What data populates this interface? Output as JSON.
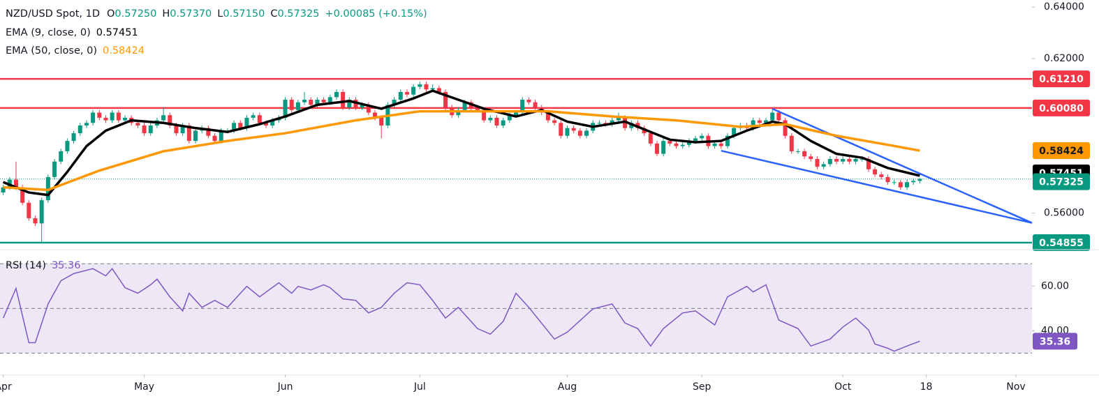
{
  "chart_data": [
    {
      "type": "candlestick",
      "symbol": "NZD/USD Spot, 1D",
      "ohlc_keys": [
        "O",
        "H",
        "L",
        "C"
      ],
      "ohlc_labels": [
        "0.57250",
        "0.57370",
        "0.57150",
        "0.57325"
      ],
      "change_label": "+0.00085 (+0.15%)",
      "up_color": "#089981",
      "down_color": "#f23645",
      "x": [
        0,
        1,
        2,
        3,
        4,
        5,
        6,
        7,
        8,
        9,
        10,
        11,
        12,
        13,
        14,
        15,
        16,
        17,
        18,
        19,
        20,
        21,
        22,
        23,
        24,
        25,
        26,
        27,
        28,
        29,
        30,
        31,
        32,
        33,
        34,
        35,
        36,
        37,
        38,
        39,
        40,
        41,
        42,
        43,
        44,
        45,
        46,
        47,
        48,
        49,
        50,
        51,
        52,
        53,
        54,
        55,
        56,
        57,
        58,
        59,
        60,
        61,
        62,
        63,
        64,
        65,
        66,
        67,
        68,
        69,
        70,
        71,
        72,
        73,
        74,
        75,
        76,
        77,
        78,
        79,
        80,
        81,
        82,
        83,
        84,
        85,
        86,
        87,
        88,
        89,
        90,
        91,
        92,
        93,
        94,
        95,
        96,
        97,
        98,
        99,
        100,
        101,
        102,
        103,
        104,
        105,
        106,
        107,
        108,
        109,
        110,
        111,
        112,
        113,
        114,
        115,
        116,
        117,
        118,
        119,
        120,
        121,
        122,
        123,
        124,
        125,
        126,
        127,
        128,
        129,
        130,
        131,
        132,
        133,
        134,
        135,
        136,
        137,
        138,
        139,
        140,
        141,
        142,
        143
      ],
      "open": [
        0.568,
        0.57,
        0.573,
        0.57,
        0.564,
        0.558,
        0.556,
        0.565,
        0.574,
        0.58,
        0.584,
        0.588,
        0.591,
        0.594,
        0.595,
        0.599,
        0.597,
        0.596,
        0.599,
        0.596,
        0.597,
        0.595,
        0.594,
        0.591,
        0.594,
        0.596,
        0.598,
        0.594,
        0.591,
        0.594,
        0.588,
        0.592,
        0.593,
        0.59,
        0.588,
        0.592,
        0.592,
        0.595,
        0.593,
        0.597,
        0.598,
        0.595,
        0.594,
        0.596,
        0.597,
        0.604,
        0.6,
        0.603,
        0.604,
        0.602,
        0.604,
        0.603,
        0.605,
        0.607,
        0.601,
        0.604,
        0.601,
        0.602,
        0.599,
        0.597,
        0.594,
        0.602,
        0.604,
        0.607,
        0.606,
        0.609,
        0.61,
        0.608,
        0.6085,
        0.607,
        0.601,
        0.598,
        0.6,
        0.603,
        0.601,
        0.6,
        0.596,
        0.597,
        0.594,
        0.596,
        0.598,
        0.599,
        0.604,
        0.603,
        0.601,
        0.599,
        0.596,
        0.595,
        0.59,
        0.593,
        0.592,
        0.59,
        0.592,
        0.595,
        0.595,
        0.5945,
        0.596,
        0.597,
        0.593,
        0.595,
        0.593,
        0.591,
        0.587,
        0.583,
        0.588,
        0.587,
        0.586,
        0.5865,
        0.588,
        0.589,
        0.59,
        0.586,
        0.587,
        0.586,
        0.59,
        0.593,
        0.594,
        0.593,
        0.596,
        0.595,
        0.596,
        0.599,
        0.596,
        0.59,
        0.584,
        0.584,
        0.582,
        0.581,
        0.578,
        0.579,
        0.581,
        0.58,
        0.581,
        0.58,
        0.581,
        0.581,
        0.577,
        0.575,
        0.574,
        0.572,
        0.572,
        0.57,
        0.572,
        0.5725
      ],
      "high": [
        0.571,
        0.574,
        0.58,
        0.571,
        0.565,
        0.559,
        0.566,
        0.575,
        0.581,
        0.585,
        0.589,
        0.592,
        0.595,
        0.596,
        0.6,
        0.6,
        0.598,
        0.6,
        0.6,
        0.598,
        0.598,
        0.596,
        0.595,
        0.595,
        0.597,
        0.601,
        0.599,
        0.595,
        0.595,
        0.595,
        0.593,
        0.594,
        0.594,
        0.591,
        0.593,
        0.593,
        0.596,
        0.596,
        0.598,
        0.599,
        0.599,
        0.596,
        0.597,
        0.598,
        0.605,
        0.605,
        0.604,
        0.607,
        0.605,
        0.605,
        0.605,
        0.606,
        0.608,
        0.608,
        0.605,
        0.605,
        0.603,
        0.603,
        0.6,
        0.598,
        0.603,
        0.605,
        0.608,
        0.608,
        0.61,
        0.611,
        0.611,
        0.61,
        0.6095,
        0.608,
        0.602,
        0.601,
        0.604,
        0.604,
        0.602,
        0.601,
        0.598,
        0.598,
        0.597,
        0.599,
        0.6,
        0.605,
        0.605,
        0.604,
        0.602,
        0.6,
        0.597,
        0.596,
        0.594,
        0.594,
        0.593,
        0.593,
        0.596,
        0.596,
        0.596,
        0.597,
        0.599,
        0.598,
        0.596,
        0.596,
        0.594,
        0.592,
        0.588,
        0.589,
        0.589,
        0.588,
        0.5875,
        0.589,
        0.59,
        0.591,
        0.591,
        0.588,
        0.588,
        0.591,
        0.594,
        0.595,
        0.595,
        0.597,
        0.597,
        0.597,
        0.6005,
        0.6,
        0.597,
        0.591,
        0.585,
        0.585,
        0.583,
        0.582,
        0.58,
        0.582,
        0.582,
        0.582,
        0.582,
        0.582,
        0.582,
        0.582,
        0.578,
        0.576,
        0.575,
        0.573,
        0.573,
        0.573,
        0.5735,
        0.5737
      ],
      "low": [
        0.567,
        0.569,
        0.569,
        0.563,
        0.557,
        0.555,
        0.5485,
        0.564,
        0.573,
        0.579,
        0.583,
        0.587,
        0.59,
        0.593,
        0.594,
        0.596,
        0.595,
        0.595,
        0.595,
        0.595,
        0.594,
        0.593,
        0.59,
        0.59,
        0.593,
        0.595,
        0.593,
        0.59,
        0.59,
        0.587,
        0.587,
        0.591,
        0.589,
        0.587,
        0.587,
        0.591,
        0.591,
        0.592,
        0.592,
        0.596,
        0.594,
        0.593,
        0.593,
        0.595,
        0.596,
        0.599,
        0.599,
        0.602,
        0.601,
        0.601,
        0.602,
        0.602,
        0.604,
        0.6,
        0.6,
        0.6,
        0.6,
        0.598,
        0.596,
        0.589,
        0.593,
        0.601,
        0.603,
        0.605,
        0.605,
        0.608,
        0.607,
        0.607,
        0.606,
        0.6,
        0.597,
        0.597,
        0.599,
        0.6,
        0.599,
        0.595,
        0.595,
        0.593,
        0.593,
        0.595,
        0.597,
        0.598,
        0.602,
        0.6,
        0.598,
        0.595,
        0.594,
        0.589,
        0.589,
        0.591,
        0.589,
        0.589,
        0.591,
        0.594,
        0.5935,
        0.5935,
        0.595,
        0.592,
        0.592,
        0.592,
        0.59,
        0.586,
        0.582,
        0.582,
        0.586,
        0.585,
        0.585,
        0.5855,
        0.587,
        0.588,
        0.585,
        0.585,
        0.585,
        0.585,
        0.589,
        0.592,
        0.592,
        0.592,
        0.594,
        0.594,
        0.595,
        0.595,
        0.589,
        0.583,
        0.583,
        0.581,
        0.58,
        0.577,
        0.577,
        0.578,
        0.579,
        0.579,
        0.579,
        0.579,
        0.58,
        0.576,
        0.574,
        0.573,
        0.571,
        0.571,
        0.569,
        0.569,
        0.571,
        0.5715
      ],
      "close": [
        0.57,
        0.573,
        0.57,
        0.564,
        0.558,
        0.556,
        0.565,
        0.574,
        0.58,
        0.584,
        0.588,
        0.591,
        0.594,
        0.595,
        0.599,
        0.597,
        0.596,
        0.599,
        0.596,
        0.597,
        0.595,
        0.594,
        0.591,
        0.594,
        0.596,
        0.598,
        0.594,
        0.591,
        0.594,
        0.588,
        0.592,
        0.593,
        0.59,
        0.588,
        0.592,
        0.592,
        0.595,
        0.593,
        0.597,
        0.598,
        0.595,
        0.594,
        0.596,
        0.597,
        0.604,
        0.6,
        0.603,
        0.604,
        0.602,
        0.604,
        0.603,
        0.605,
        0.607,
        0.601,
        0.604,
        0.601,
        0.602,
        0.599,
        0.597,
        0.594,
        0.602,
        0.604,
        0.607,
        0.606,
        0.609,
        0.61,
        0.608,
        0.6085,
        0.607,
        0.601,
        0.598,
        0.6,
        0.603,
        0.601,
        0.6,
        0.596,
        0.597,
        0.594,
        0.596,
        0.598,
        0.599,
        0.604,
        0.603,
        0.601,
        0.599,
        0.596,
        0.595,
        0.59,
        0.593,
        0.592,
        0.59,
        0.592,
        0.595,
        0.595,
        0.5945,
        0.596,
        0.597,
        0.593,
        0.595,
        0.593,
        0.591,
        0.587,
        0.583,
        0.588,
        0.587,
        0.586,
        0.5865,
        0.588,
        0.589,
        0.59,
        0.586,
        0.587,
        0.586,
        0.59,
        0.593,
        0.594,
        0.593,
        0.596,
        0.595,
        0.596,
        0.599,
        0.596,
        0.59,
        0.584,
        0.584,
        0.582,
        0.581,
        0.578,
        0.579,
        0.581,
        0.58,
        0.581,
        0.58,
        0.581,
        0.581,
        0.577,
        0.575,
        0.574,
        0.572,
        0.572,
        0.57,
        0.572,
        0.5725,
        0.57325
      ],
      "series": [
        {
          "name": "EMA (9, close, 0)",
          "color": "#000000",
          "text_color": "#ffffff",
          "value_label": "0.57451",
          "x": [
            0,
            4,
            7,
            10,
            13,
            16,
            20,
            25,
            30,
            35,
            40,
            44,
            49,
            54,
            59,
            64,
            67,
            71,
            75,
            80,
            84,
            88,
            92,
            97,
            101,
            104,
            108,
            112,
            116,
            120,
            122,
            126,
            130,
            134,
            138,
            143
          ],
          "values": [
            0.572,
            0.568,
            0.567,
            0.576,
            0.586,
            0.592,
            0.596,
            0.595,
            0.593,
            0.5915,
            0.5945,
            0.5975,
            0.602,
            0.6035,
            0.6005,
            0.6045,
            0.6075,
            0.604,
            0.6005,
            0.5975,
            0.6,
            0.5955,
            0.5935,
            0.5955,
            0.5915,
            0.5885,
            0.5875,
            0.588,
            0.592,
            0.5955,
            0.5945,
            0.588,
            0.583,
            0.5815,
            0.5775,
            0.57451
          ]
        },
        {
          "name": "EMA (50, close, 0)",
          "color": "#ff9800",
          "text_color": "#131722",
          "value_label": "0.58424",
          "x": [
            0,
            7,
            15,
            25,
            35,
            44,
            55,
            65,
            75,
            85,
            95,
            105,
            115,
            122,
            130,
            138,
            143
          ],
          "values": [
            0.57,
            0.569,
            0.5765,
            0.584,
            0.588,
            0.591,
            0.596,
            0.5995,
            0.5995,
            0.5995,
            0.5975,
            0.596,
            0.5935,
            0.5945,
            0.59,
            0.5865,
            0.58424
          ]
        }
      ],
      "levels": [
        {
          "value": 0.6121,
          "label": "0.61210",
          "color": "#f23645"
        },
        {
          "value": 0.6008,
          "label": "0.60080",
          "color": "#f23645"
        },
        {
          "value": 0.54855,
          "label": "0.54855",
          "color": "#089981"
        }
      ],
      "last_price": {
        "value": 0.57325,
        "label": "0.57325",
        "color": "#089981"
      },
      "trendlines": [
        {
          "color": "#2962ff",
          "x": [
            120,
            160.5
          ],
          "y": [
            0.6005,
            0.5562
          ]
        },
        {
          "color": "#2962ff",
          "x": [
            112,
            160.5
          ],
          "y": [
            0.5842,
            0.5562
          ]
        }
      ],
      "xlim": [
        -0.5,
        160.5
      ],
      "xticks": [
        {
          "value": 0,
          "label": "Apr"
        },
        {
          "value": 22,
          "label": "May"
        },
        {
          "value": 44,
          "label": "Jun"
        },
        {
          "value": 65,
          "label": "Jul"
        },
        {
          "value": 88,
          "label": "Aug"
        },
        {
          "value": 109,
          "label": "Sep"
        },
        {
          "value": 131,
          "label": "Oct"
        },
        {
          "value": 144,
          "label": "18"
        },
        {
          "value": 158,
          "label": "Nov"
        }
      ],
      "ylim": [
        0.5461,
        0.6427
      ],
      "yticks": [
        {
          "value": 0.64,
          "label": "0.64000"
        },
        {
          "value": 0.62,
          "label": "0.62000"
        },
        {
          "value": 0.56,
          "label": "0.56000"
        }
      ]
    },
    {
      "type": "line",
      "title": "RSI (14)",
      "value_label": "35.36",
      "color": "#7e57c2",
      "band_color": "#ede7f6",
      "x": [
        0,
        2,
        4,
        5,
        7,
        9,
        11,
        14,
        16,
        17,
        19,
        21,
        23,
        24,
        26,
        28,
        29,
        31,
        33,
        35,
        38,
        40,
        43,
        45,
        46,
        48,
        50,
        51,
        53,
        55,
        57,
        59,
        61,
        63,
        65,
        67,
        69,
        71,
        74,
        76,
        78,
        80,
        82,
        86,
        88,
        92,
        95,
        97,
        99,
        101,
        103,
        106,
        108,
        111,
        113,
        116,
        117,
        119,
        121,
        124,
        126,
        129,
        131,
        133,
        135,
        136,
        138,
        139,
        141,
        143
      ],
      "values": [
        45.7,
        59,
        34.7,
        34.7,
        52,
        62.4,
        65.6,
        67.8,
        64.6,
        67.8,
        59.3,
        56.8,
        60.6,
        63.1,
        55.2,
        48.9,
        56.8,
        50.5,
        53.6,
        50.5,
        59.9,
        55.2,
        61.5,
        56.8,
        59.9,
        58.3,
        60.6,
        59.3,
        54.3,
        53.6,
        48,
        50.5,
        56.8,
        61.5,
        60.6,
        53.6,
        45.7,
        50.5,
        41,
        38.5,
        44.2,
        56.8,
        50.5,
        36.3,
        39.4,
        49.8,
        52,
        43.5,
        41,
        33.2,
        41,
        48,
        48.9,
        42.6,
        55.2,
        59.9,
        57.4,
        60.6,
        44.8,
        41,
        33.2,
        36.3,
        41.7,
        45.7,
        40.4,
        34.1,
        32.2,
        30.9,
        33.2,
        35.36
      ],
      "levels": [
        30,
        50,
        70
      ],
      "xlim": [
        -0.5,
        160.5
      ],
      "ylim": [
        20.5,
        75.7
      ],
      "yticks": [
        {
          "value": 40,
          "label": "40.00"
        },
        {
          "value": 60,
          "label": "60.00"
        }
      ]
    }
  ]
}
